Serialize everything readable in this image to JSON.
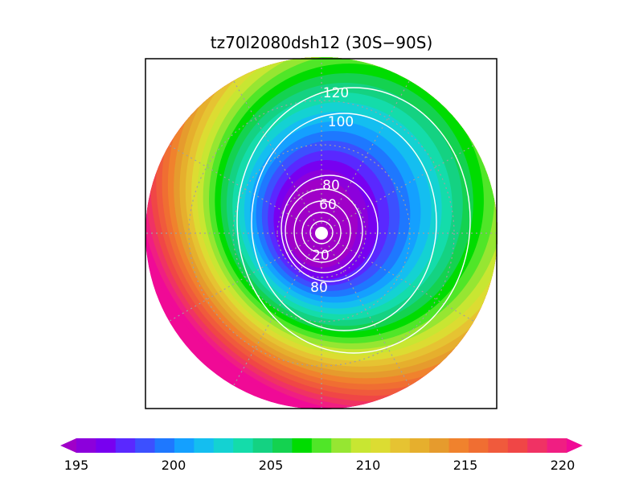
{
  "chart_data": {
    "type": "heatmap",
    "projection": "south polar stereographic",
    "title": "tz70l2080dsh12 (30S−90S)",
    "region": {
      "lat_range": [
        "30S",
        "90S"
      ]
    },
    "grid": true,
    "field": {
      "description_levels": "shaded temperature-like field",
      "levels": [
        195,
        196,
        197,
        198,
        199,
        200,
        201,
        202,
        203,
        204,
        205,
        206,
        207,
        208,
        209,
        210,
        211,
        212,
        213,
        214,
        215,
        216,
        217,
        218,
        219,
        220
      ],
      "colors": [
        "#a000c8",
        "#8c00dc",
        "#7800f0",
        "#5a28ff",
        "#3c50ff",
        "#1e78ff",
        "#14a0ff",
        "#14bef0",
        "#14d2d2",
        "#14dcaa",
        "#14d282",
        "#14d250",
        "#00dc00",
        "#50e628",
        "#96e632",
        "#c8e632",
        "#dcdc32",
        "#e6c332",
        "#e6af2d",
        "#e69b2d",
        "#f0822d",
        "#f06e32",
        "#f05a3c",
        "#f04646",
        "#f03264",
        "#f01e82",
        "#f00a96"
      ],
      "colorbar_ticks": [
        "195",
        "200",
        "205",
        "210",
        "215",
        "220"
      ],
      "colorbar_extend": "both"
    },
    "contours": {
      "color": "#ffffff",
      "levels": [
        20,
        40,
        60,
        80,
        100,
        120
      ],
      "labels": [
        {
          "text": "120"
        },
        {
          "text": "100"
        },
        {
          "text": "80"
        },
        {
          "text": "60"
        },
        {
          "text": "20"
        },
        {
          "text": "80"
        }
      ]
    }
  }
}
